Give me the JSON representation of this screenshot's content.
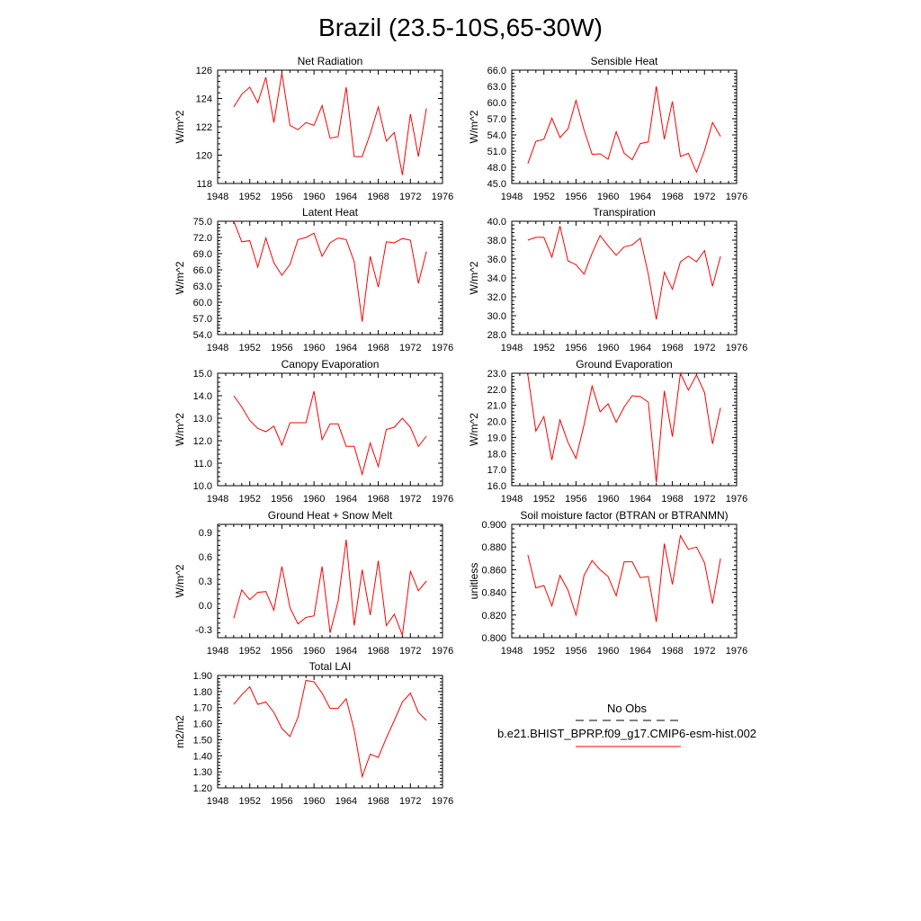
{
  "figure": {
    "title": "Brazil (23.5-10S,65-30W)"
  },
  "legend": {
    "obs_label": "No Obs",
    "model_label": "b.e21.BHIST_BPRP.f09_g17.CMIP6-esm-hist.002",
    "obs_color": "#000000",
    "model_color": "#ff0000"
  },
  "chart_data": [
    {
      "type": "line",
      "title": "Net Radiation",
      "ylabel": "W/m^2",
      "xlim": [
        1948,
        1976
      ],
      "xticks": [
        1948,
        1952,
        1956,
        1960,
        1964,
        1968,
        1972,
        1976
      ],
      "ylim": [
        118,
        126
      ],
      "yticks": [
        118,
        120,
        122,
        124,
        126
      ],
      "ytick_labels": [
        "118",
        "120",
        "122",
        "124",
        "126"
      ],
      "x": [
        1950,
        1951,
        1952,
        1953,
        1954,
        1955,
        1956,
        1957,
        1958,
        1959,
        1960,
        1961,
        1962,
        1963,
        1964,
        1965,
        1966,
        1967,
        1968,
        1969,
        1970,
        1971,
        1972,
        1973,
        1974
      ],
      "series": [
        {
          "values": [
            123.4,
            124.3,
            124.8,
            123.7,
            125.5,
            122.3,
            125.8,
            122.1,
            121.8,
            122.3,
            122.1,
            123.5,
            121.2,
            121.3,
            124.8,
            119.9,
            119.9,
            121.5,
            123.4,
            121.0,
            121.6,
            118.6,
            122.9,
            119.9,
            123.3
          ]
        }
      ]
    },
    {
      "type": "line",
      "title": "Sensible Heat",
      "ylabel": "W/m^2",
      "xlim": [
        1948,
        1976
      ],
      "xticks": [
        1948,
        1952,
        1956,
        1960,
        1964,
        1968,
        1972,
        1976
      ],
      "ylim": [
        45,
        66
      ],
      "yticks": [
        45,
        48,
        51,
        54,
        57,
        60,
        63,
        66
      ],
      "ytick_labels": [
        "45.0",
        "48.0",
        "51.0",
        "54.0",
        "57.0",
        "60.0",
        "63.0",
        "66.0"
      ],
      "x": [
        1950,
        1951,
        1952,
        1953,
        1954,
        1955,
        1956,
        1957,
        1958,
        1959,
        1960,
        1961,
        1962,
        1963,
        1964,
        1965,
        1966,
        1967,
        1968,
        1969,
        1970,
        1971,
        1972,
        1973,
        1974
      ],
      "series": [
        {
          "values": [
            48.7,
            52.8,
            53.2,
            57.1,
            53.5,
            55.1,
            60.4,
            54.9,
            50.4,
            50.5,
            49.5,
            54.6,
            50.6,
            49.4,
            52.4,
            52.7,
            63.0,
            53.2,
            60.2,
            50.0,
            50.6,
            47.1,
            51.1,
            56.3,
            53.7
          ]
        }
      ]
    },
    {
      "type": "line",
      "title": "Latent Heat",
      "ylabel": "W/m^2",
      "xlim": [
        1948,
        1976
      ],
      "xticks": [
        1948,
        1952,
        1956,
        1960,
        1964,
        1968,
        1972,
        1976
      ],
      "ylim": [
        54,
        75
      ],
      "yticks": [
        54,
        57,
        60,
        63,
        66,
        69,
        72,
        75
      ],
      "ytick_labels": [
        "54.0",
        "57.0",
        "60.0",
        "63.0",
        "66.0",
        "69.0",
        "72.0",
        "75.0"
      ],
      "x": [
        1950,
        1951,
        1952,
        1953,
        1954,
        1955,
        1956,
        1957,
        1958,
        1959,
        1960,
        1961,
        1962,
        1963,
        1964,
        1965,
        1966,
        1967,
        1968,
        1969,
        1970,
        1971,
        1972,
        1973,
        1974
      ],
      "series": [
        {
          "values": [
            75.0,
            71.2,
            71.4,
            66.5,
            71.9,
            67.3,
            65.0,
            67.0,
            71.6,
            72.0,
            72.8,
            68.5,
            71.0,
            71.9,
            71.6,
            67.5,
            56.4,
            68.5,
            62.8,
            71.2,
            71.0,
            71.8,
            71.5,
            63.5,
            69.4
          ]
        }
      ]
    },
    {
      "type": "line",
      "title": "Transpiration",
      "ylabel": "W/m^2",
      "xlim": [
        1948,
        1976
      ],
      "xticks": [
        1948,
        1952,
        1956,
        1960,
        1964,
        1968,
        1972,
        1976
      ],
      "ylim": [
        28,
        40
      ],
      "yticks": [
        28,
        30,
        32,
        34,
        36,
        38,
        40
      ],
      "ytick_labels": [
        "28.0",
        "30.0",
        "32.0",
        "34.0",
        "36.0",
        "38.0",
        "40.0"
      ],
      "x": [
        1950,
        1951,
        1952,
        1953,
        1954,
        1955,
        1956,
        1957,
        1958,
        1959,
        1960,
        1961,
        1962,
        1963,
        1964,
        1965,
        1966,
        1967,
        1968,
        1969,
        1970,
        1971,
        1972,
        1973,
        1974
      ],
      "series": [
        {
          "values": [
            38.0,
            38.3,
            38.3,
            36.2,
            39.5,
            35.8,
            35.4,
            34.4,
            36.6,
            38.5,
            37.4,
            36.4,
            37.3,
            37.5,
            38.2,
            34.4,
            29.6,
            34.6,
            32.8,
            35.7,
            36.3,
            35.7,
            36.9,
            33.1,
            36.3
          ]
        }
      ]
    },
    {
      "type": "line",
      "title": "Canopy Evaporation",
      "ylabel": "W/m^2",
      "xlim": [
        1948,
        1976
      ],
      "xticks": [
        1948,
        1952,
        1956,
        1960,
        1964,
        1968,
        1972,
        1976
      ],
      "ylim": [
        10,
        15
      ],
      "yticks": [
        10,
        11,
        12,
        13,
        14,
        15
      ],
      "ytick_labels": [
        "10.0",
        "11.0",
        "12.0",
        "13.0",
        "14.0",
        "15.0"
      ],
      "x": [
        1950,
        1951,
        1952,
        1953,
        1954,
        1955,
        1956,
        1957,
        1958,
        1959,
        1960,
        1961,
        1962,
        1963,
        1964,
        1965,
        1966,
        1967,
        1968,
        1969,
        1970,
        1971,
        1972,
        1973,
        1974
      ],
      "series": [
        {
          "values": [
            14.0,
            13.5,
            12.9,
            12.55,
            12.4,
            12.65,
            11.8,
            12.8,
            12.8,
            12.8,
            14.2,
            12.05,
            12.75,
            12.75,
            11.75,
            11.75,
            10.5,
            11.9,
            10.85,
            12.5,
            12.6,
            13.0,
            12.6,
            11.75,
            12.2
          ]
        }
      ]
    },
    {
      "type": "line",
      "title": "Ground Evaporation",
      "ylabel": "W/m^2",
      "xlim": [
        1948,
        1976
      ],
      "xticks": [
        1948,
        1952,
        1956,
        1960,
        1964,
        1968,
        1972,
        1976
      ],
      "ylim": [
        16,
        23
      ],
      "yticks": [
        16,
        17,
        18,
        19,
        20,
        21,
        22,
        23
      ],
      "ytick_labels": [
        "16.0",
        "17.0",
        "18.0",
        "19.0",
        "20.0",
        "21.0",
        "22.0",
        "23.0"
      ],
      "x": [
        1950,
        1951,
        1952,
        1953,
        1954,
        1955,
        1956,
        1957,
        1958,
        1959,
        1960,
        1961,
        1962,
        1963,
        1964,
        1965,
        1966,
        1967,
        1968,
        1969,
        1970,
        1971,
        1972,
        1973,
        1974
      ],
      "series": [
        {
          "values": [
            22.9,
            19.4,
            20.3,
            17.6,
            20.1,
            18.7,
            17.7,
            19.8,
            22.2,
            20.6,
            21.1,
            19.95,
            20.9,
            21.6,
            21.55,
            21.2,
            16.2,
            21.9,
            19.05,
            23.0,
            21.95,
            22.9,
            21.8,
            18.6,
            20.85
          ]
        }
      ]
    },
    {
      "type": "line",
      "title": "Ground Heat + Snow Melt",
      "ylabel": "W/m^2",
      "xlim": [
        1948,
        1976
      ],
      "xticks": [
        1948,
        1952,
        1956,
        1960,
        1964,
        1968,
        1972,
        1976
      ],
      "ylim": [
        -0.4,
        1.0
      ],
      "yticks": [
        -0.3,
        0.0,
        0.3,
        0.6,
        0.9
      ],
      "ytick_labels": [
        "-0.3",
        "0.0",
        "0.3",
        "0.6",
        "0.9"
      ],
      "x": [
        1950,
        1951,
        1952,
        1953,
        1954,
        1955,
        1956,
        1957,
        1958,
        1959,
        1960,
        1961,
        1962,
        1963,
        1964,
        1965,
        1966,
        1967,
        1968,
        1969,
        1970,
        1971,
        1972,
        1973,
        1974
      ],
      "series": [
        {
          "values": [
            -0.16,
            0.19,
            0.07,
            0.16,
            0.17,
            -0.06,
            0.48,
            -0.03,
            -0.23,
            -0.15,
            -0.13,
            0.48,
            -0.34,
            0.05,
            0.81,
            -0.25,
            0.44,
            -0.12,
            0.55,
            -0.25,
            -0.11,
            -0.37,
            0.42,
            0.18,
            0.3
          ]
        }
      ]
    },
    {
      "type": "line",
      "title": "Soil moisture factor (BTRAN or BTRANMN)",
      "ylabel": "unitless",
      "xlim": [
        1948,
        1976
      ],
      "xticks": [
        1948,
        1952,
        1956,
        1960,
        1964,
        1968,
        1972,
        1976
      ],
      "ylim": [
        0.8,
        0.9
      ],
      "yticks": [
        0.8,
        0.82,
        0.84,
        0.86,
        0.88,
        0.9
      ],
      "ytick_labels": [
        "0.800",
        "0.820",
        "0.840",
        "0.860",
        "0.880",
        "0.900"
      ],
      "x": [
        1950,
        1951,
        1952,
        1953,
        1954,
        1955,
        1956,
        1957,
        1958,
        1959,
        1960,
        1961,
        1962,
        1963,
        1964,
        1965,
        1966,
        1967,
        1968,
        1969,
        1970,
        1971,
        1972,
        1973,
        1974
      ],
      "series": [
        {
          "values": [
            0.873,
            0.844,
            0.846,
            0.828,
            0.855,
            0.842,
            0.82,
            0.855,
            0.868,
            0.86,
            0.854,
            0.837,
            0.867,
            0.867,
            0.853,
            0.854,
            0.814,
            0.883,
            0.847,
            0.89,
            0.878,
            0.88,
            0.866,
            0.83,
            0.87
          ]
        }
      ]
    },
    {
      "type": "line",
      "title": "Total LAI",
      "ylabel": "m2/m2",
      "xlim": [
        1948,
        1976
      ],
      "xticks": [
        1948,
        1952,
        1956,
        1960,
        1964,
        1968,
        1972,
        1976
      ],
      "ylim": [
        1.2,
        1.9
      ],
      "yticks": [
        1.2,
        1.3,
        1.4,
        1.5,
        1.6,
        1.7,
        1.8,
        1.9
      ],
      "ytick_labels": [
        "1.20",
        "1.30",
        "1.40",
        "1.50",
        "1.60",
        "1.70",
        "1.80",
        "1.90"
      ],
      "x": [
        1950,
        1951,
        1952,
        1953,
        1954,
        1955,
        1956,
        1957,
        1958,
        1959,
        1960,
        1961,
        1962,
        1963,
        1964,
        1965,
        1966,
        1967,
        1968,
        1969,
        1970,
        1971,
        1972,
        1973,
        1974
      ],
      "series": [
        {
          "values": [
            1.72,
            1.78,
            1.83,
            1.72,
            1.735,
            1.67,
            1.57,
            1.52,
            1.64,
            1.87,
            1.86,
            1.79,
            1.695,
            1.695,
            1.755,
            1.56,
            1.27,
            1.41,
            1.39,
            1.51,
            1.62,
            1.735,
            1.79,
            1.67,
            1.62
          ]
        }
      ]
    }
  ]
}
